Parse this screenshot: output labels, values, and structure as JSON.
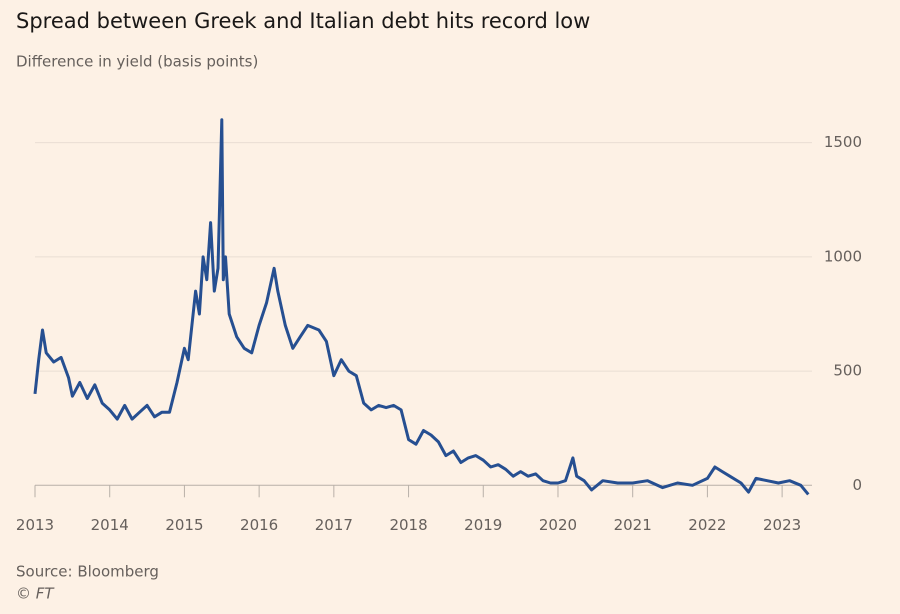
{
  "chart_data": {
    "type": "line",
    "title": "Spread between Greek and Italian debt hits record low",
    "subtitle": "Difference in yield (basis points)",
    "source": "Source: Bloomberg",
    "credit": "© FT",
    "x": [
      2013.0,
      2013.05,
      2013.1,
      2013.15,
      2013.25,
      2013.35,
      2013.45,
      2013.5,
      2013.6,
      2013.7,
      2013.8,
      2013.9,
      2014.0,
      2014.1,
      2014.2,
      2014.3,
      2014.4,
      2014.5,
      2014.6,
      2014.7,
      2014.8,
      2014.9,
      2015.0,
      2015.05,
      2015.1,
      2015.15,
      2015.2,
      2015.25,
      2015.3,
      2015.35,
      2015.4,
      2015.45,
      2015.5,
      2015.52,
      2015.55,
      2015.6,
      2015.7,
      2015.8,
      2015.9,
      2016.0,
      2016.1,
      2016.2,
      2016.25,
      2016.35,
      2016.45,
      2016.55,
      2016.65,
      2016.8,
      2016.9,
      2017.0,
      2017.1,
      2017.2,
      2017.3,
      2017.4,
      2017.5,
      2017.6,
      2017.7,
      2017.8,
      2017.9,
      2018.0,
      2018.1,
      2018.2,
      2018.3,
      2018.4,
      2018.5,
      2018.6,
      2018.7,
      2018.8,
      2018.9,
      2019.0,
      2019.1,
      2019.2,
      2019.3,
      2019.4,
      2019.5,
      2019.6,
      2019.7,
      2019.8,
      2019.9,
      2020.0,
      2020.1,
      2020.2,
      2020.25,
      2020.35,
      2020.45,
      2020.6,
      2020.8,
      2021.0,
      2021.2,
      2021.4,
      2021.6,
      2021.8,
      2022.0,
      2022.1,
      2022.2,
      2022.3,
      2022.45,
      2022.55,
      2022.65,
      2022.8,
      2022.95,
      2023.1,
      2023.25,
      2023.35
    ],
    "series": [
      {
        "name": "Spread",
        "color": "#264f91",
        "values": [
          400,
          550,
          680,
          580,
          540,
          560,
          470,
          390,
          450,
          380,
          440,
          360,
          330,
          290,
          350,
          290,
          320,
          350,
          300,
          320,
          320,
          450,
          600,
          550,
          700,
          850,
          750,
          1000,
          900,
          1150,
          850,
          950,
          1600,
          900,
          1000,
          750,
          650,
          600,
          580,
          700,
          800,
          950,
          850,
          700,
          600,
          650,
          700,
          680,
          630,
          480,
          550,
          500,
          480,
          360,
          330,
          350,
          340,
          350,
          330,
          200,
          180,
          240,
          220,
          190,
          130,
          150,
          100,
          120,
          130,
          110,
          80,
          90,
          70,
          40,
          60,
          40,
          50,
          20,
          10,
          10,
          20,
          120,
          40,
          20,
          -20,
          20,
          10,
          10,
          20,
          -10,
          10,
          0,
          30,
          80,
          60,
          40,
          10,
          -30,
          30,
          20,
          10,
          20,
          0,
          -40
        ]
      }
    ],
    "xlim": [
      2013,
      2023.4
    ],
    "xticks": [
      2013,
      2014,
      2015,
      2016,
      2017,
      2018,
      2019,
      2020,
      2021,
      2022,
      2023
    ],
    "ylim": [
      -60,
      1700
    ],
    "yticks": [
      0,
      500,
      1000,
      1500
    ],
    "grid": true
  }
}
